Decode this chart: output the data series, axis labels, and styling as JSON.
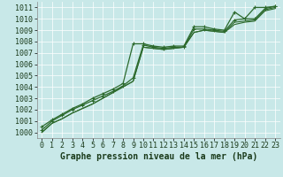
{
  "xlabel": "Graphe pression niveau de la mer (hPa)",
  "xlim": [
    -0.5,
    23.5
  ],
  "ylim": [
    999.5,
    1011.5
  ],
  "yticks": [
    1000,
    1001,
    1002,
    1003,
    1004,
    1005,
    1006,
    1007,
    1008,
    1009,
    1010,
    1011
  ],
  "xticks": [
    0,
    1,
    2,
    3,
    4,
    5,
    6,
    7,
    8,
    9,
    10,
    11,
    12,
    13,
    14,
    15,
    16,
    17,
    18,
    19,
    20,
    21,
    22,
    23
  ],
  "bg_color": "#c8e8e8",
  "grid_color": "#ffffff",
  "line_color": "#2d6a2d",
  "lines": [
    [
      1000.5,
      1001.1,
      1001.6,
      1002.1,
      1002.5,
      1003.0,
      1003.4,
      1003.8,
      1004.3,
      1007.8,
      1007.8,
      1007.6,
      1007.5,
      1007.6,
      1007.6,
      1009.3,
      1009.3,
      1009.1,
      1009.0,
      1010.6,
      1010.0,
      1011.0,
      1011.0,
      1011.1
    ],
    [
      1000.2,
      1001.0,
      1001.5,
      1002.0,
      1002.4,
      1002.8,
      1003.2,
      1003.6,
      1004.1,
      1004.8,
      1007.7,
      1007.5,
      1007.4,
      1007.5,
      1007.5,
      1009.1,
      1009.1,
      1009.0,
      1008.9,
      1009.9,
      1010.0,
      1010.0,
      1010.9,
      1011.1
    ],
    [
      1000.0,
      1000.8,
      1001.2,
      1001.7,
      1002.1,
      1002.5,
      1003.0,
      1003.5,
      1004.0,
      1004.5,
      1007.5,
      1007.4,
      1007.3,
      1007.4,
      1007.5,
      1008.8,
      1009.0,
      1008.9,
      1008.8,
      1009.7,
      1009.8,
      1009.9,
      1010.8,
      1011.0
    ],
    [
      1000.0,
      1000.8,
      1001.2,
      1001.7,
      1002.1,
      1002.5,
      1003.0,
      1003.5,
      1004.0,
      1004.5,
      1007.5,
      1007.4,
      1007.3,
      1007.4,
      1007.5,
      1008.8,
      1009.0,
      1008.9,
      1008.8,
      1009.5,
      1009.7,
      1009.8,
      1010.7,
      1010.9
    ]
  ],
  "marker_indices": [
    0,
    1,
    2
  ],
  "fontsize_label": 7,
  "fontsize_ticks": 6
}
